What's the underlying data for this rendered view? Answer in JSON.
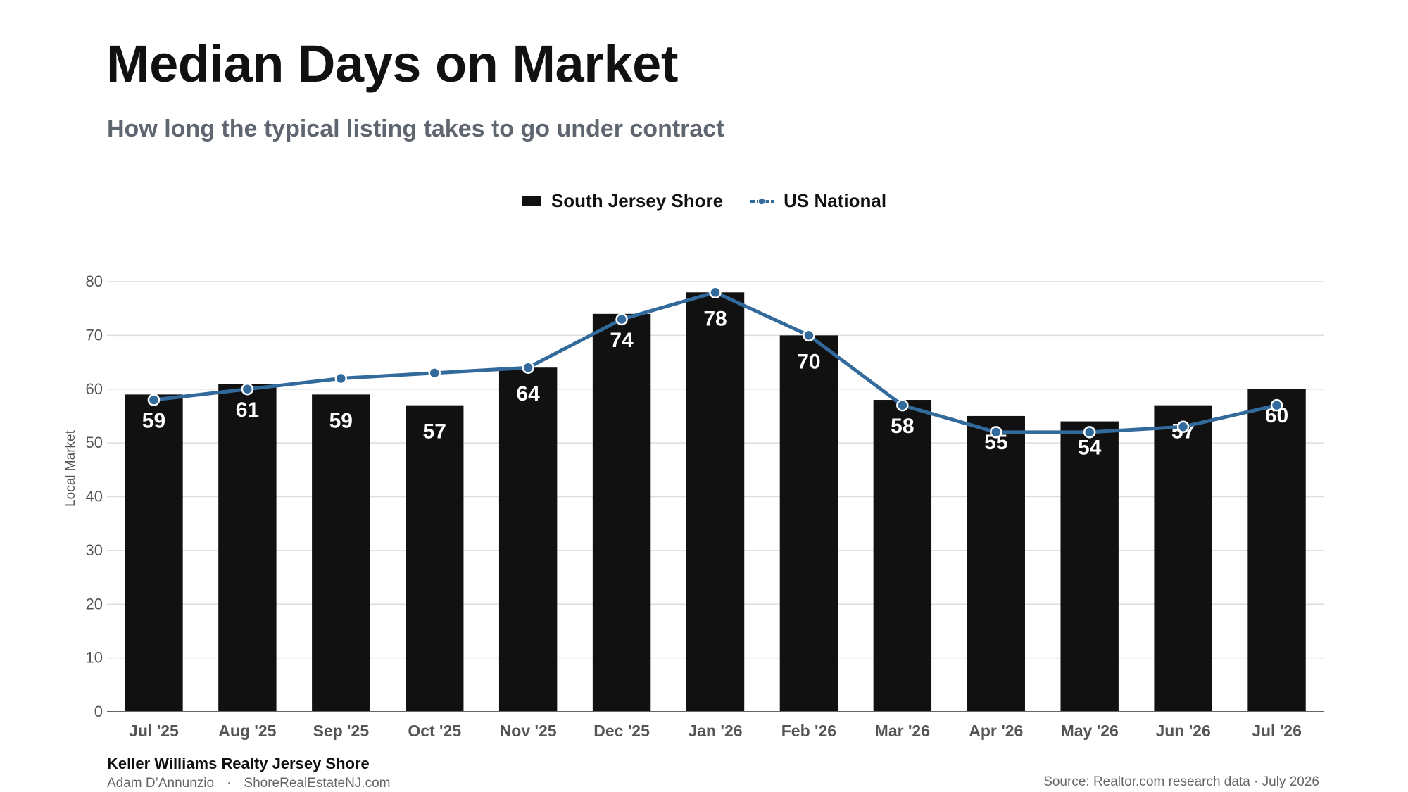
{
  "header": {
    "title": "Median Days on Market",
    "subtitle": "How long the typical listing takes to go under contract"
  },
  "legend": {
    "bar_label": "South Jersey Shore",
    "line_label": "US National"
  },
  "footer": {
    "company": "Keller Williams Realty Jersey Shore",
    "agent": "Adam D’Annunzio",
    "separator": "·",
    "website": "ShoreRealEstateNJ.com",
    "source": "Source: Realtor.com research data · July 2026"
  },
  "colors": {
    "bar": "#111111",
    "line": "#336a9c",
    "bar_label": "#ffffff",
    "grid": "#dddddd",
    "axis_text": "#555555",
    "tick_text": "#555555"
  },
  "chart_data": {
    "type": "bar",
    "ylabel": "Local Market",
    "xlabel": "",
    "ylim": [
      0,
      80
    ],
    "yticks": [
      0,
      10,
      20,
      30,
      40,
      50,
      60,
      70,
      80
    ],
    "grid": true,
    "legend_position": "top-center",
    "categories": [
      "Jul '25",
      "Aug '25",
      "Sep '25",
      "Oct '25",
      "Nov '25",
      "Dec '25",
      "Jan '26",
      "Feb '26",
      "Mar '26",
      "Apr '26",
      "May '26",
      "Jun '26",
      "Jul '26"
    ],
    "series": [
      {
        "name": "South Jersey Shore",
        "type": "bar",
        "values": [
          59,
          61,
          59,
          57,
          64,
          74,
          78,
          70,
          58,
          55,
          54,
          57,
          60
        ],
        "value_labels": [
          "59",
          "61",
          "59",
          "57",
          "64",
          "74",
          "78",
          "70",
          "58",
          "55",
          "54",
          "57",
          "60"
        ]
      },
      {
        "name": "US National",
        "type": "line",
        "values": [
          58,
          60,
          62,
          63,
          64,
          73,
          78,
          70,
          57,
          52,
          52,
          53,
          57
        ]
      }
    ]
  }
}
